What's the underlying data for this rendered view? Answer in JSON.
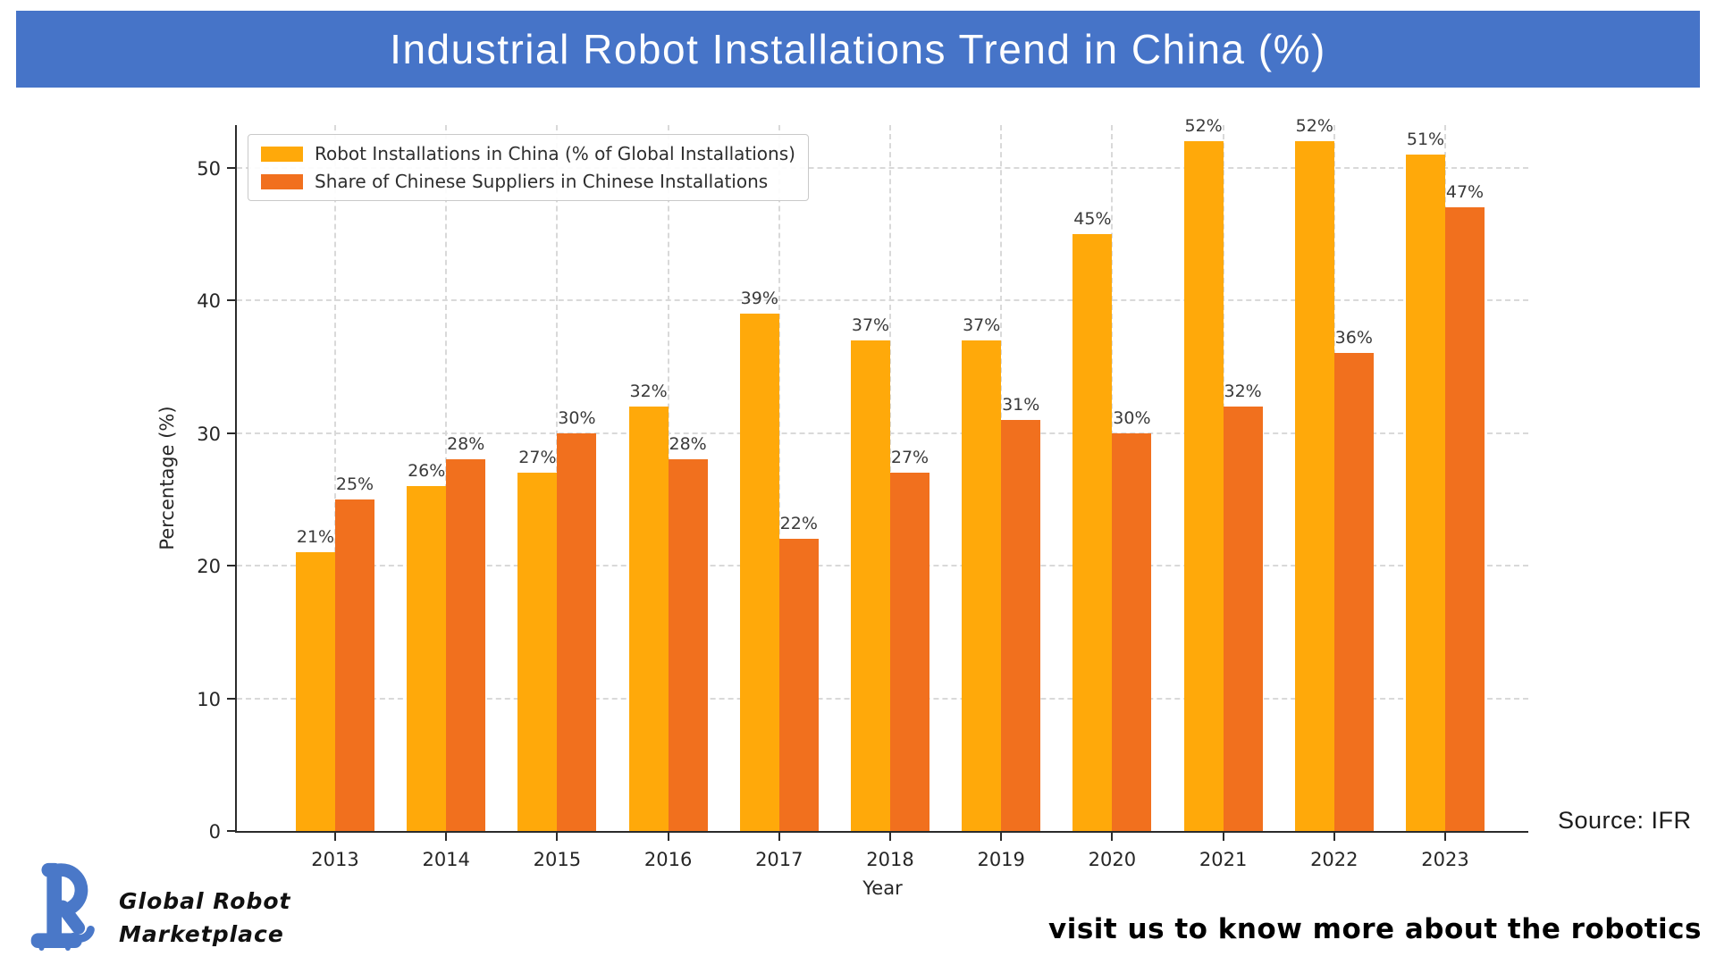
{
  "banner": {
    "title": "Industrial Robot Installations Trend in China (%)",
    "bg_color": "#4674C8",
    "text_color": "#ffffff"
  },
  "chart_data": {
    "type": "bar",
    "title": "Industrial Robot Installations Trend in China (%)",
    "categories": [
      "2013",
      "2014",
      "2015",
      "2016",
      "2017",
      "2018",
      "2019",
      "2020",
      "2021",
      "2022",
      "2023"
    ],
    "series": [
      {
        "name": "Robot Installations in China (% of Global Installations)",
        "color": "#FFA90A",
        "values": [
          21,
          26,
          27,
          32,
          39,
          37,
          37,
          45,
          52,
          52,
          51
        ]
      },
      {
        "name": "Share of Chinese Suppliers in Chinese Installations",
        "color": "#F1701E",
        "values": [
          25,
          28,
          30,
          28,
          22,
          27,
          31,
          30,
          32,
          36,
          47
        ]
      }
    ],
    "xlabel": "Year",
    "ylabel": "Percentage (%)",
    "ylim": [
      0,
      53.2
    ],
    "yticks": [
      0,
      10,
      20,
      30,
      40,
      50
    ],
    "grid": true,
    "gridline_style": "dashed",
    "legend_position": "upper-left",
    "bar_label_suffix": "%"
  },
  "source_note": "Source: IFR",
  "footer": {
    "brand_line1": "Global Robot",
    "brand_line2": "Marketplace",
    "tagline": "visit us to know more about the robotics",
    "logo_color": "#4A78C8"
  }
}
